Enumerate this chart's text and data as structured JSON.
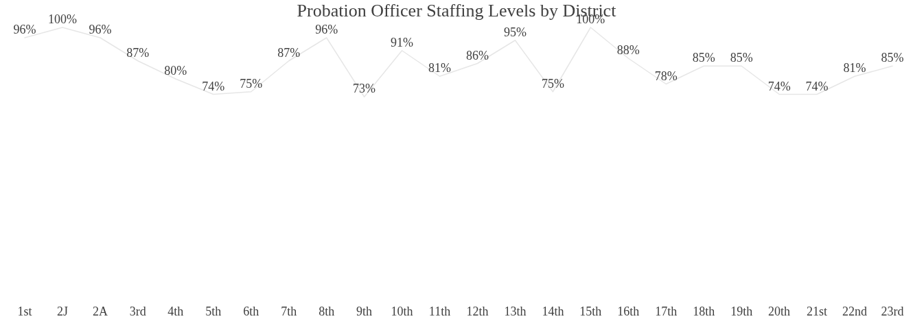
{
  "chart_data": {
    "type": "line",
    "title": "Probation Officer Staffing Levels by District",
    "marker": "none",
    "categories": [
      "1st",
      "2J",
      "2A",
      "3rd",
      "4th",
      "5th",
      "6th",
      "7th",
      "8th",
      "9th",
      "10th",
      "11th",
      "12th",
      "13th",
      "14th",
      "15th",
      "16th",
      "17th",
      "18th",
      "19th",
      "20th",
      "21st",
      "22nd",
      "23rd"
    ],
    "series": [
      {
        "color": "#e6e6e6",
        "values": [
          96,
          100,
          96,
          87,
          80,
          74,
          75,
          87,
          96,
          73,
          91,
          81,
          86,
          95,
          75,
          100,
          88,
          78,
          85,
          85,
          74,
          74,
          81,
          85
        ],
        "value_labels": [
          "96%",
          "100%",
          "96%",
          "87%",
          "80%",
          "74%",
          "75%",
          "87%",
          "96%",
          "73%",
          "91%",
          "81%",
          "86%",
          "95%",
          "75%",
          "100%",
          "88%",
          "78%",
          "85%",
          "85%",
          "74%",
          "74%",
          "81%",
          "85%"
        ]
      }
    ]
  }
}
